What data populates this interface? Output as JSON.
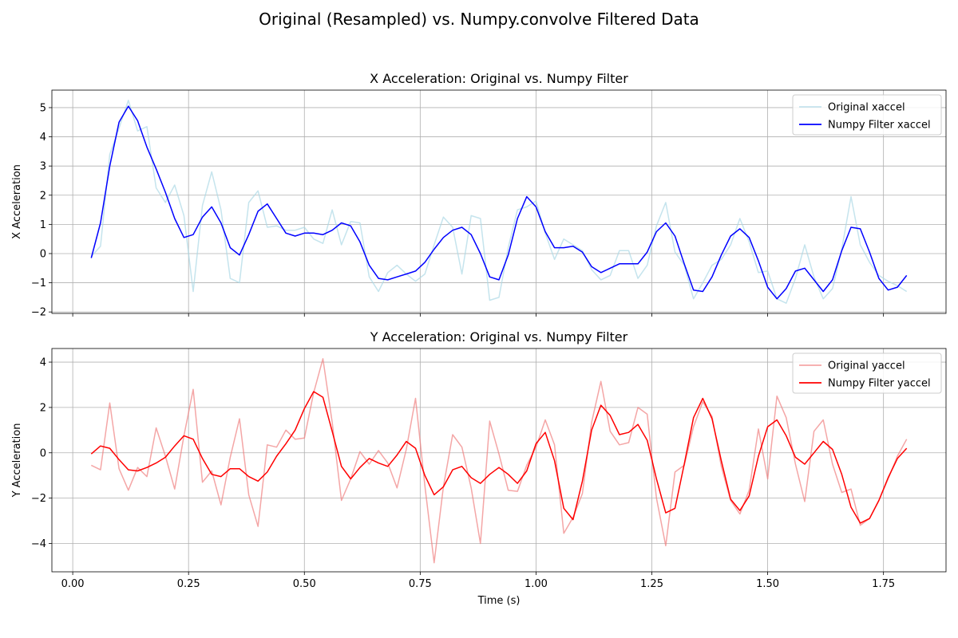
{
  "suptitle": "Original (Resampled) vs. Numpy.convolve Filtered Data",
  "shared_x": {
    "label": "Time (s)",
    "ticks": [
      0.0,
      0.25,
      0.5,
      0.75,
      1.0,
      1.25,
      1.5,
      1.75
    ],
    "tick_labels": [
      "0.00",
      "0.25",
      "0.50",
      "0.75",
      "1.00",
      "1.25",
      "1.50",
      "1.75"
    ],
    "xlim": [
      -0.045,
      1.885
    ]
  },
  "chart_data": [
    {
      "type": "line",
      "title": "X Acceleration: Original vs. Numpy Filter",
      "xlabel": "",
      "ylabel": "X Acceleration",
      "ylim": [
        -2.05,
        5.6
      ],
      "yticks": [
        -2,
        -1,
        0,
        1,
        2,
        3,
        4,
        5
      ],
      "ytick_labels": [
        "−2",
        "−1",
        "0",
        "1",
        "2",
        "3",
        "4",
        "5"
      ],
      "grid": true,
      "legend": "top-right",
      "x": [
        0.04,
        0.06,
        0.08,
        0.1,
        0.12,
        0.14,
        0.16,
        0.18,
        0.2,
        0.22,
        0.24,
        0.26,
        0.28,
        0.3,
        0.32,
        0.34,
        0.36,
        0.38,
        0.4,
        0.42,
        0.44,
        0.46,
        0.48,
        0.5,
        0.52,
        0.54,
        0.56,
        0.58,
        0.6,
        0.62,
        0.64,
        0.66,
        0.68,
        0.7,
        0.72,
        0.74,
        0.76,
        0.78,
        0.8,
        0.82,
        0.84,
        0.86,
        0.88,
        0.9,
        0.92,
        0.94,
        0.96,
        0.98,
        1.0,
        1.02,
        1.04,
        1.06,
        1.08,
        1.1,
        1.12,
        1.14,
        1.16,
        1.18,
        1.2,
        1.22,
        1.24,
        1.26,
        1.28,
        1.3,
        1.32,
        1.34,
        1.36,
        1.38,
        1.4,
        1.42,
        1.44,
        1.46,
        1.48,
        1.5,
        1.52,
        1.54,
        1.56,
        1.58,
        1.6,
        1.62,
        1.64,
        1.66,
        1.68,
        1.7,
        1.72,
        1.74,
        1.76,
        1.78,
        1.8
      ],
      "series": [
        {
          "name": "Original xaccel",
          "color": "#add8e6",
          "values": [
            -0.1,
            0.25,
            3.4,
            4.3,
            5.25,
            4.2,
            4.35,
            2.25,
            1.75,
            2.35,
            1.3,
            -1.3,
            1.65,
            2.8,
            1.5,
            -0.85,
            -1.0,
            1.75,
            2.15,
            0.9,
            0.95,
            0.8,
            0.8,
            0.9,
            0.5,
            0.35,
            1.5,
            0.3,
            1.1,
            1.05,
            -0.8,
            -1.3,
            -0.65,
            -0.4,
            -0.7,
            -0.95,
            -0.7,
            0.3,
            1.25,
            0.9,
            -0.7,
            1.3,
            1.2,
            -1.6,
            -1.5,
            0.2,
            1.5,
            1.6,
            1.8,
            0.7,
            -0.2,
            0.5,
            0.3,
            0.1,
            -0.55,
            -0.9,
            -0.75,
            0.1,
            0.1,
            -0.85,
            -0.4,
            0.95,
            1.75,
            0.05,
            -0.4,
            -1.55,
            -1.0,
            -0.4,
            -0.2,
            0.3,
            1.2,
            0.4,
            -0.65,
            -0.6,
            -1.55,
            -1.7,
            -0.85,
            0.3,
            -0.8,
            -1.55,
            -1.2,
            0.15,
            1.95,
            0.3,
            -0.3,
            -0.75,
            -0.95,
            -1.1,
            -1.3
          ]
        },
        {
          "name": "Numpy Filter xaccel",
          "color": "#0000ff",
          "values": [
            -0.15,
            1.05,
            3.0,
            4.5,
            5.05,
            4.55,
            3.65,
            2.9,
            2.1,
            1.2,
            0.55,
            0.65,
            1.25,
            1.6,
            1.05,
            0.2,
            -0.05,
            0.65,
            1.45,
            1.7,
            1.2,
            0.7,
            0.6,
            0.7,
            0.7,
            0.65,
            0.8,
            1.05,
            0.95,
            0.4,
            -0.4,
            -0.85,
            -0.9,
            -0.8,
            -0.7,
            -0.6,
            -0.3,
            0.15,
            0.55,
            0.8,
            0.9,
            0.65,
            0.0,
            -0.8,
            -0.9,
            -0.05,
            1.2,
            1.95,
            1.6,
            0.75,
            0.2,
            0.2,
            0.25,
            0.05,
            -0.45,
            -0.65,
            -0.5,
            -0.35,
            -0.35,
            -0.35,
            0.05,
            0.75,
            1.05,
            0.6,
            -0.35,
            -1.25,
            -1.3,
            -0.8,
            -0.05,
            0.6,
            0.85,
            0.55,
            -0.25,
            -1.15,
            -1.55,
            -1.2,
            -0.6,
            -0.5,
            -0.9,
            -1.3,
            -0.9,
            0.1,
            0.9,
            0.85,
            0.05,
            -0.85,
            -1.25,
            -1.15,
            -0.75
          ]
        }
      ]
    },
    {
      "type": "line",
      "title": "Y Acceleration: Original vs. Numpy Filter",
      "xlabel": "Time (s)",
      "ylabel": "Y Acceleration",
      "ylim": [
        -5.25,
        4.6
      ],
      "yticks": [
        -4,
        -2,
        0,
        2,
        4
      ],
      "ytick_labels": [
        "−4",
        "−2",
        "0",
        "2",
        "4"
      ],
      "grid": true,
      "legend": "top-right",
      "x": [
        0.04,
        0.06,
        0.08,
        0.1,
        0.12,
        0.14,
        0.16,
        0.18,
        0.2,
        0.22,
        0.24,
        0.26,
        0.28,
        0.3,
        0.32,
        0.34,
        0.36,
        0.38,
        0.4,
        0.42,
        0.44,
        0.46,
        0.48,
        0.5,
        0.52,
        0.54,
        0.56,
        0.58,
        0.6,
        0.62,
        0.64,
        0.66,
        0.68,
        0.7,
        0.72,
        0.74,
        0.76,
        0.78,
        0.8,
        0.82,
        0.84,
        0.86,
        0.88,
        0.9,
        0.92,
        0.94,
        0.96,
        0.98,
        1.0,
        1.02,
        1.04,
        1.06,
        1.08,
        1.1,
        1.12,
        1.14,
        1.16,
        1.18,
        1.2,
        1.22,
        1.24,
        1.26,
        1.28,
        1.3,
        1.32,
        1.34,
        1.36,
        1.38,
        1.4,
        1.42,
        1.44,
        1.46,
        1.48,
        1.5,
        1.52,
        1.54,
        1.56,
        1.58,
        1.6,
        1.62,
        1.64,
        1.66,
        1.68,
        1.7,
        1.72,
        1.74,
        1.76,
        1.78,
        1.8
      ],
      "series": [
        {
          "name": "Original yaccel",
          "color": "#f08080",
          "values": [
            -0.55,
            -0.75,
            2.2,
            -0.7,
            -1.65,
            -0.65,
            -1.05,
            1.1,
            -0.15,
            -1.6,
            0.75,
            2.8,
            -1.3,
            -0.8,
            -2.3,
            -0.2,
            1.5,
            -1.85,
            -3.25,
            0.35,
            0.25,
            1.0,
            0.6,
            0.65,
            2.65,
            4.15,
            1.35,
            -2.1,
            -1.15,
            0.05,
            -0.5,
            0.1,
            -0.45,
            -1.55,
            0.15,
            2.4,
            -1.45,
            -4.85,
            -1.5,
            0.8,
            0.25,
            -1.55,
            -4.0,
            1.4,
            -0.05,
            -1.65,
            -1.7,
            -0.55,
            0.25,
            1.45,
            0.35,
            -3.55,
            -2.85,
            -1.8,
            1.35,
            3.15,
            0.95,
            0.35,
            0.45,
            2.0,
            1.7,
            -2.0,
            -4.1,
            -0.85,
            -0.55,
            1.15,
            2.25,
            1.6,
            -0.6,
            -2.1,
            -2.7,
            -1.65,
            1.05,
            -1.15,
            2.5,
            1.55,
            -0.5,
            -2.15,
            0.95,
            1.45,
            -0.5,
            -1.75,
            -1.6,
            -3.2,
            -2.9,
            -2.1,
            -1.15,
            -0.15,
            0.6
          ]
        },
        {
          "name": "Numpy Filter yaccel",
          "color": "#ff0000",
          "values": [
            -0.05,
            0.3,
            0.2,
            -0.3,
            -0.75,
            -0.8,
            -0.65,
            -0.45,
            -0.2,
            0.3,
            0.75,
            0.6,
            -0.25,
            -0.95,
            -1.05,
            -0.7,
            -0.7,
            -1.05,
            -1.25,
            -0.85,
            -0.15,
            0.4,
            1.0,
            1.95,
            2.7,
            2.45,
            0.95,
            -0.6,
            -1.15,
            -0.65,
            -0.25,
            -0.45,
            -0.6,
            -0.1,
            0.5,
            0.2,
            -1.0,
            -1.85,
            -1.5,
            -0.75,
            -0.6,
            -1.1,
            -1.35,
            -0.95,
            -0.65,
            -0.95,
            -1.35,
            -0.8,
            0.4,
            0.9,
            -0.35,
            -2.45,
            -2.95,
            -1.25,
            1.0,
            2.1,
            1.65,
            0.8,
            0.9,
            1.25,
            0.55,
            -1.15,
            -2.65,
            -2.45,
            -0.5,
            1.55,
            2.4,
            1.5,
            -0.35,
            -2.05,
            -2.55,
            -1.9,
            -0.15,
            1.15,
            1.45,
            0.75,
            -0.2,
            -0.5,
            0.0,
            0.5,
            0.15,
            -0.95,
            -2.4,
            -3.1,
            -2.9,
            -2.1,
            -1.1,
            -0.25,
            0.2
          ]
        }
      ]
    }
  ]
}
